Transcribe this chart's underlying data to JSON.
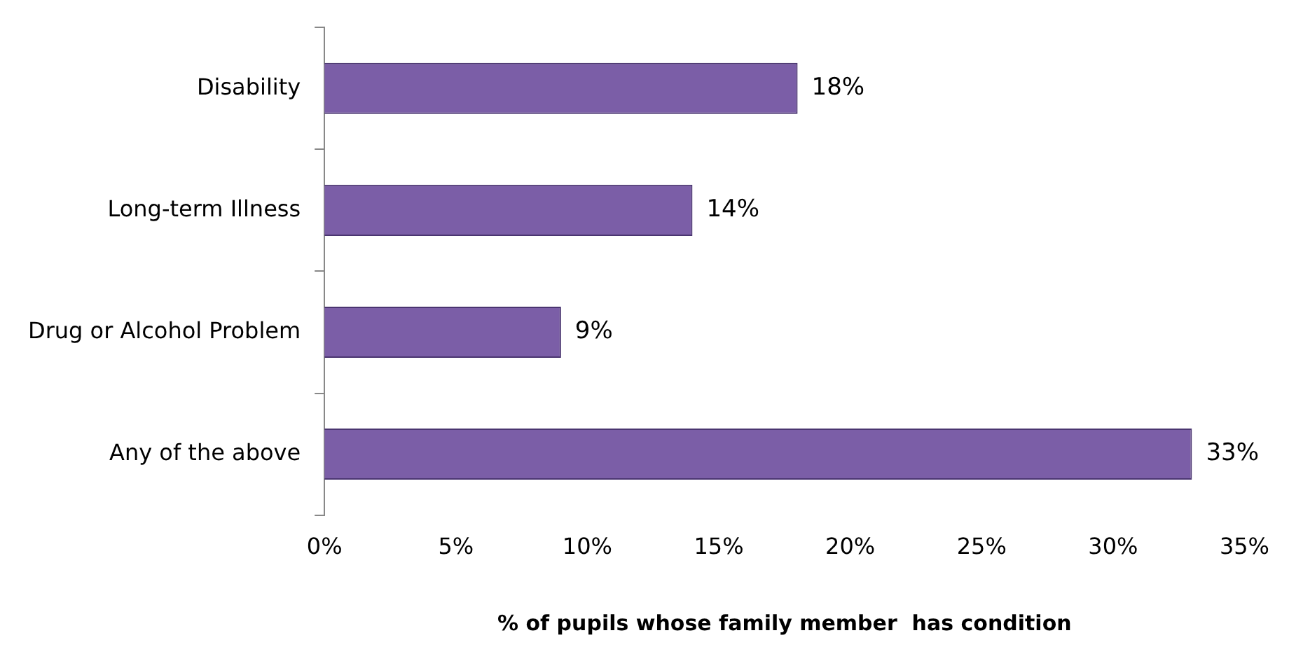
{
  "chart_data": {
    "type": "bar",
    "orientation": "horizontal",
    "xlabel": "% of pupils whose family member  has condition",
    "categories": [
      "Disability",
      "Long-term Illness",
      "Drug or Alcohol Problem",
      "Any of the above"
    ],
    "values": [
      18,
      14,
      9,
      33
    ],
    "color": "#7b5ea7",
    "value_labels": [
      "18%",
      "14%",
      "9%",
      "33%"
    ],
    "xlim": [
      0,
      35
    ],
    "xticks": [
      {
        "value": 0,
        "label": "0%"
      },
      {
        "value": 5,
        "label": "5%"
      },
      {
        "value": 10,
        "label": "10%"
      },
      {
        "value": 15,
        "label": "15%"
      },
      {
        "value": 20,
        "label": "20%"
      },
      {
        "value": 25,
        "label": "25%"
      },
      {
        "value": 30,
        "label": "30%"
      },
      {
        "value": 35,
        "label": "35%"
      }
    ],
    "grid": false,
    "legend": false
  }
}
